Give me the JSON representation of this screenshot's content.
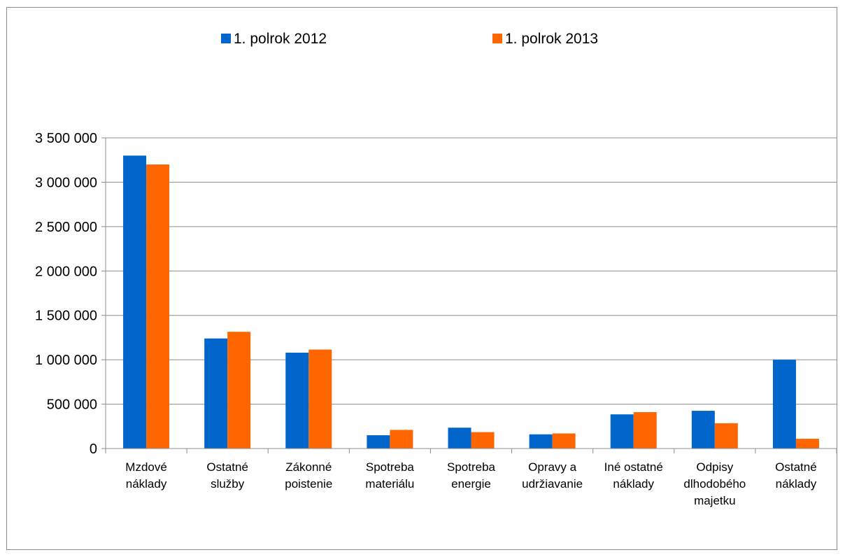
{
  "chart_data": {
    "type": "bar",
    "categories": [
      [
        "Mzdové",
        "náklady"
      ],
      [
        "Ostatné",
        "služby"
      ],
      [
        "Zákonné",
        "poistenie"
      ],
      [
        "Spotreba",
        "materiálu"
      ],
      [
        "Spotreba",
        "energie"
      ],
      [
        "Opravy a",
        "udržiavanie"
      ],
      [
        "Iné ostatné",
        "náklady"
      ],
      [
        "Odpisy",
        "dlhodobého",
        "majetku"
      ],
      [
        "Ostatné",
        "náklady"
      ]
    ],
    "series": [
      {
        "name": "1. polrok 2012",
        "color": "#0066CC",
        "values": [
          3300000,
          1240000,
          1080000,
          150000,
          235000,
          160000,
          385000,
          425000,
          1000000
        ]
      },
      {
        "name": "1. polrok 2013",
        "color": "#FF6600",
        "values": [
          3200000,
          1315000,
          1115000,
          210000,
          185000,
          170000,
          410000,
          285000,
          110000
        ]
      }
    ],
    "ylim": [
      0,
      3500000
    ],
    "yticks": [
      0,
      500000,
      1000000,
      1500000,
      2000000,
      2500000,
      3000000,
      3500000
    ],
    "ytick_labels": [
      "0",
      "500 000",
      "1 000 000",
      "1 500 000",
      "2 000 000",
      "2 500 000",
      "3 000 000",
      "3 500 000"
    ],
    "grid": true,
    "legend_position": "top"
  }
}
